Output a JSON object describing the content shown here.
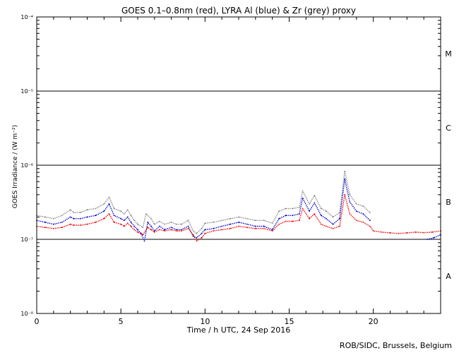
{
  "chart_data": {
    "type": "line",
    "title": "GOES 0.1–0.8nm (red), LYRA Al (blue) & Zr (grey) proxy",
    "xlabel": "Time / h UTC, 24 Sep 2016",
    "ylabel": "GOES Irradiance / (W m⁻²)",
    "xlim": [
      0,
      24
    ],
    "ylim": [
      1e-08,
      0.0001
    ],
    "yscale": "log",
    "x_ticks": [
      {
        "value": 0,
        "label": "0"
      },
      {
        "value": 5,
        "label": "5"
      },
      {
        "value": 10,
        "label": "10"
      },
      {
        "value": 15,
        "label": "15"
      },
      {
        "value": 20,
        "label": "20"
      }
    ],
    "y_ticks": [
      {
        "value": 1e-08,
        "label": "10⁻⁸"
      },
      {
        "value": 1e-07,
        "label": "10⁻⁷"
      },
      {
        "value": 1e-06,
        "label": "10⁻⁶"
      },
      {
        "value": 1e-05,
        "label": "10⁻⁵"
      },
      {
        "value": 0.0001,
        "label": "10⁻⁴"
      }
    ],
    "flare_class_lines": [
      1e-07,
      1e-06,
      1e-05
    ],
    "flare_classes": [
      {
        "label": "A",
        "value": 3.2e-08
      },
      {
        "label": "B",
        "value": 3.2e-07
      },
      {
        "label": "C",
        "value": 3.2e-06
      },
      {
        "label": "M",
        "value": 3.2e-05
      }
    ],
    "series": [
      {
        "color": "#888888",
        "x": [
          0.0,
          0.5,
          1.0,
          1.5,
          2.0,
          2.2,
          2.6,
          3.0,
          3.5,
          4.0,
          4.3,
          4.6,
          5.0,
          5.2,
          5.4,
          5.6,
          5.8,
          6.0,
          6.3,
          6.5,
          6.8,
          7.0,
          7.3,
          7.6,
          8.0,
          8.3,
          8.6,
          9.0,
          9.3,
          9.5,
          9.8,
          10.0,
          10.5,
          11.0,
          11.5,
          12.0,
          12.5,
          13.0,
          13.5,
          14.0,
          14.4,
          14.8,
          15.2,
          15.6,
          15.8,
          16.2,
          16.5,
          16.9,
          17.2,
          17.6,
          18.0,
          18.3,
          18.6,
          19.0,
          19.4,
          19.8
        ],
        "values": [
          2.1e-07,
          2e-07,
          1.9e-07,
          2.1e-07,
          2.5e-07,
          2.3e-07,
          2.3e-07,
          2.5e-07,
          2.6e-07,
          3e-07,
          3.7e-07,
          2.6e-07,
          2.4e-07,
          2.2e-07,
          2.5e-07,
          2.1e-07,
          1.8e-07,
          1.6e-07,
          1.45e-07,
          2.2e-07,
          1.9e-07,
          1.6e-07,
          1.75e-07,
          1.6e-07,
          1.7e-07,
          1.6e-07,
          1.6e-07,
          1.8e-07,
          1.3e-07,
          1.2e-07,
          1.4e-07,
          1.65e-07,
          1.7e-07,
          1.8e-07,
          1.9e-07,
          2e-07,
          1.9e-07,
          1.8e-07,
          1.8e-07,
          1.65e-07,
          2.4e-07,
          2.6e-07,
          2.6e-07,
          2.7e-07,
          4.5e-07,
          3e-07,
          3.9e-07,
          2.6e-07,
          2.4e-07,
          2e-07,
          2.3e-07,
          8.3e-07,
          4e-07,
          3e-07,
          2.8e-07,
          2.3e-07
        ]
      },
      {
        "color": "#0000cc",
        "x": [
          0.0,
          0.5,
          1.0,
          1.5,
          2.0,
          2.2,
          2.6,
          3.0,
          3.5,
          4.0,
          4.3,
          4.6,
          5.0,
          5.2,
          5.4,
          5.6,
          5.8,
          6.0,
          6.2,
          6.4,
          6.6,
          6.8,
          7.0,
          7.3,
          7.6,
          8.0,
          8.3,
          8.6,
          9.0,
          9.3,
          9.5,
          9.8,
          10.0,
          10.5,
          11.0,
          11.5,
          12.0,
          12.5,
          13.0,
          13.5,
          14.0,
          14.4,
          14.8,
          15.2,
          15.6,
          15.8,
          16.2,
          16.5,
          16.9,
          17.2,
          17.6,
          18.0,
          18.3,
          18.6,
          19.0,
          19.4,
          19.8,
          23.2,
          23.6,
          24.0
        ],
        "values": [
          1.8e-07,
          1.7e-07,
          1.6e-07,
          1.7e-07,
          2e-07,
          1.9e-07,
          1.9e-07,
          2e-07,
          2.1e-07,
          2.4e-07,
          3e-07,
          2.1e-07,
          1.9e-07,
          1.8e-07,
          2e-07,
          1.7e-07,
          1.5e-07,
          1.35e-07,
          1.2e-07,
          9.5e-08,
          1.7e-07,
          1.5e-07,
          1.3e-07,
          1.5e-07,
          1.35e-07,
          1.45e-07,
          1.35e-07,
          1.35e-07,
          1.5e-07,
          1.1e-07,
          1.05e-07,
          1.2e-07,
          1.35e-07,
          1.4e-07,
          1.5e-07,
          1.6e-07,
          1.7e-07,
          1.6e-07,
          1.5e-07,
          1.5e-07,
          1.35e-07,
          1.9e-07,
          2.1e-07,
          2.1e-07,
          2.2e-07,
          3.6e-07,
          2.4e-07,
          3.1e-07,
          2.1e-07,
          1.9e-07,
          1.6e-07,
          1.9e-07,
          6.5e-07,
          3.2e-07,
          2.4e-07,
          2.2e-07,
          1.8e-07,
          1e-07,
          1.05e-07,
          1.15e-07
        ]
      },
      {
        "color": "#ee0000",
        "x": [
          0.0,
          0.5,
          1.0,
          1.5,
          2.0,
          2.2,
          2.6,
          3.0,
          3.5,
          4.0,
          4.3,
          4.6,
          5.0,
          5.2,
          5.4,
          5.6,
          5.8,
          6.0,
          6.3,
          6.6,
          6.8,
          7.0,
          7.3,
          7.6,
          8.0,
          8.3,
          8.6,
          9.0,
          9.3,
          9.5,
          9.8,
          10.0,
          10.5,
          11.0,
          11.5,
          12.0,
          12.5,
          13.0,
          13.5,
          14.0,
          14.4,
          14.8,
          15.2,
          15.6,
          15.8,
          16.2,
          16.5,
          16.9,
          17.2,
          17.6,
          18.0,
          18.3,
          18.6,
          19.0,
          19.4,
          19.8,
          20.0,
          20.5,
          21.0,
          21.5,
          22.0,
          22.5,
          23.0,
          23.5,
          24.0
        ],
        "values": [
          1.5e-07,
          1.45e-07,
          1.4e-07,
          1.45e-07,
          1.6e-07,
          1.55e-07,
          1.55e-07,
          1.6e-07,
          1.7e-07,
          1.9e-07,
          2.2e-07,
          1.7e-07,
          1.6e-07,
          1.5e-07,
          1.65e-07,
          1.5e-07,
          1.35e-07,
          1.25e-07,
          1.15e-07,
          1.45e-07,
          1.35e-07,
          1.25e-07,
          1.35e-07,
          1.3e-07,
          1.35e-07,
          1.3e-07,
          1.3e-07,
          1.4e-07,
          1.15e-07,
          9.5e-08,
          1.05e-07,
          1.2e-07,
          1.3e-07,
          1.35e-07,
          1.4e-07,
          1.5e-07,
          1.45e-07,
          1.4e-07,
          1.4e-07,
          1.3e-07,
          1.6e-07,
          1.75e-07,
          1.75e-07,
          1.8e-07,
          2.6e-07,
          1.9e-07,
          2.2e-07,
          1.6e-07,
          1.5e-07,
          1.4e-07,
          1.5e-07,
          4e-07,
          2.2e-07,
          1.8e-07,
          1.7e-07,
          1.5e-07,
          1.3e-07,
          1.25e-07,
          1.22e-07,
          1.2e-07,
          1.22e-07,
          1.25e-07,
          1.23e-07,
          1.25e-07,
          1.3e-07
        ]
      }
    ]
  },
  "footer": {
    "credit": "ROB/SIDC, Brussels, Belgium"
  }
}
